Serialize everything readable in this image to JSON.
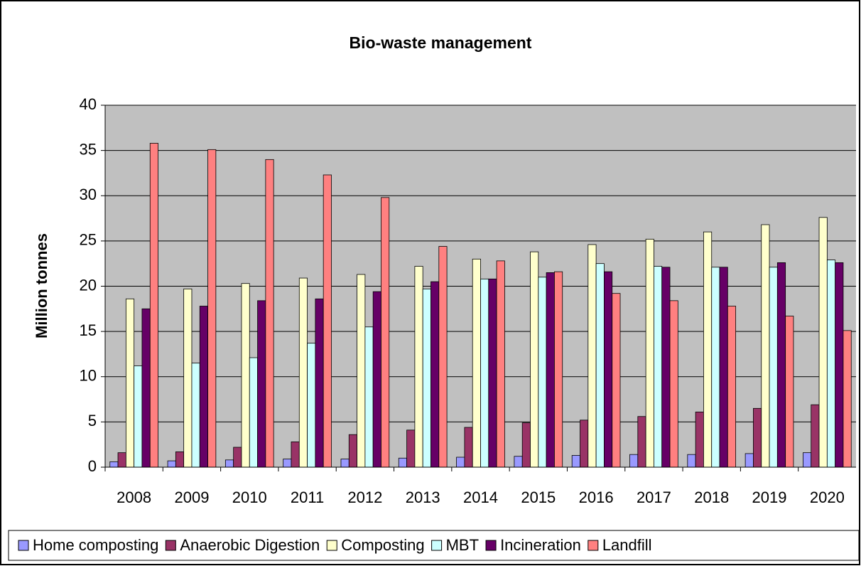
{
  "chart_data": {
    "type": "bar",
    "title": "Bio-waste management",
    "y_label": "Million tonnes",
    "categories": [
      "2008",
      "2009",
      "2010",
      "2011",
      "2012",
      "2013",
      "2014",
      "2015",
      "2016",
      "2017",
      "2018",
      "2019",
      "2020"
    ],
    "series": [
      {
        "name": "Home composting",
        "color": "#9999ff",
        "values": [
          0.6,
          0.7,
          0.8,
          0.9,
          0.9,
          1.0,
          1.1,
          1.2,
          1.3,
          1.4,
          1.4,
          1.5,
          1.6
        ]
      },
      {
        "name": "Anaerobic Digestion",
        "color": "#993366",
        "values": [
          1.6,
          1.7,
          2.2,
          2.8,
          3.6,
          4.1,
          4.4,
          4.9,
          5.2,
          5.6,
          6.1,
          6.5,
          6.9
        ]
      },
      {
        "name": "Composting",
        "color": "#ffffcc",
        "values": [
          18.6,
          19.7,
          20.3,
          20.9,
          21.3,
          22.2,
          23.0,
          23.8,
          24.6,
          25.2,
          26.0,
          26.8,
          27.6
        ]
      },
      {
        "name": "MBT",
        "color": "#ccffff",
        "values": [
          11.2,
          11.5,
          12.1,
          13.7,
          15.5,
          19.7,
          20.8,
          21.0,
          22.5,
          22.2,
          22.1,
          22.1,
          22.9
        ]
      },
      {
        "name": "Incineration",
        "color": "#660066",
        "values": [
          17.5,
          17.8,
          18.4,
          18.6,
          19.4,
          20.5,
          20.8,
          21.5,
          21.6,
          22.1,
          22.1,
          22.6,
          22.6
        ]
      },
      {
        "name": "Landfill",
        "color": "#ff8080",
        "values": [
          35.8,
          35.1,
          34.0,
          32.3,
          29.8,
          24.4,
          22.8,
          21.6,
          19.2,
          18.4,
          17.8,
          16.7,
          15.1
        ]
      }
    ],
    "ylim": [
      0,
      40
    ],
    "yticks": [
      0,
      5,
      10,
      15,
      20,
      25,
      30,
      35,
      40
    ],
    "grid": true,
    "legend": "bottom"
  }
}
